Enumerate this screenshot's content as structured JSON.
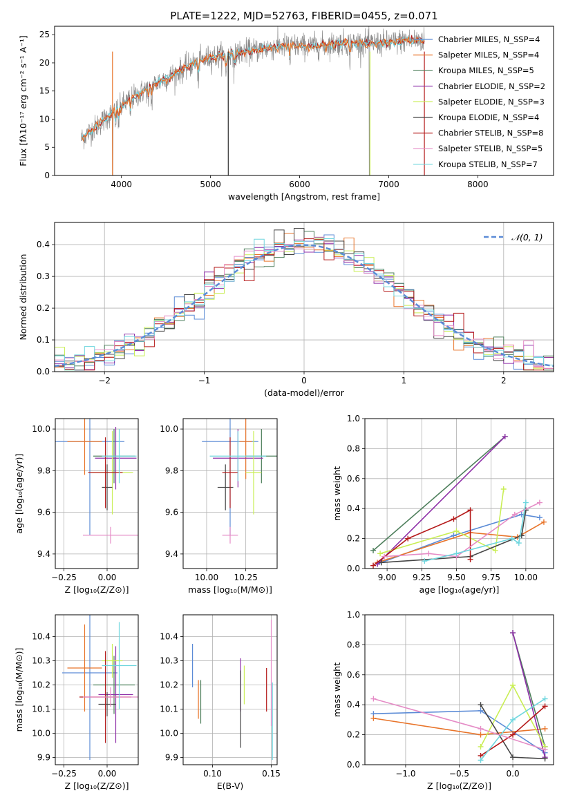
{
  "title": "PLATE=1222, MJD=52763, FIBERID=0455, z=0.071",
  "colors": {
    "c0": "#5b8bd6",
    "c1": "#e8742a",
    "c2": "#4e7f5c",
    "c3": "#8e2fa8",
    "c4": "#c9ee55",
    "c5": "#454545",
    "c6": "#b51a1a",
    "c7": "#e58cc6",
    "c8": "#6fd6de",
    "data_gray": "#8c8c8c"
  },
  "chart_data": [
    {
      "id": "spectrum",
      "type": "line",
      "xlabel": "wavelength [Angstrom, rest frame]",
      "ylabel": "Flux [fλ10⁻¹⁷ erg cm⁻² s⁻¹ A⁻¹]",
      "xlim": [
        3250,
        8850
      ],
      "ylim": [
        0,
        26.5
      ],
      "xticks": [
        "4000",
        "5000",
        "6000",
        "7000",
        "8000"
      ],
      "yticks": [
        "0",
        "5",
        "10",
        "15",
        "20",
        "25"
      ],
      "grid": false,
      "legend_position": "lower-right",
      "legend": [
        "Chabrier MILES, N_SSP=4",
        "Salpeter MILES, N_SSP=4",
        "Kroupa MILES, N_SSP=5",
        "Chabrier ELODIE, N_SSP=2",
        "Salpeter ELODIE, N_SSP=3",
        "Kroupa ELODIE, N_SSP=4",
        "Chabrier STELIB, N_SSP=8",
        "Salpeter STELIB, N_SSP=5",
        "Kroupa STELIB, N_SSP=7"
      ],
      "continuum": {
        "x": [
          3550,
          3700,
          3850,
          3950,
          4050,
          4200,
          4400,
          4600,
          4800,
          5000,
          5200,
          5400,
          5600,
          5800,
          6000,
          6200,
          6500,
          6800,
          7000,
          7200,
          7400
        ],
        "y": [
          6.5,
          8.5,
          10.5,
          11.5,
          13.0,
          14.5,
          16.5,
          18.0,
          19.8,
          21.0,
          21.5,
          22.0,
          22.5,
          23.0,
          23.0,
          23.0,
          23.5,
          23.5,
          23.5,
          24.0,
          24.0
        ]
      }
    },
    {
      "id": "residuals",
      "type": "histogram",
      "xlabel": "(data-model)/error",
      "ylabel": "Normed distribution",
      "xlim": [
        -2.5,
        2.5
      ],
      "ylim": [
        0,
        0.47
      ],
      "xticks": [
        "−2",
        "−1",
        "0",
        "1",
        "2"
      ],
      "yticks": [
        "0.0",
        "0.1",
        "0.2",
        "0.3",
        "0.4"
      ],
      "grid": true,
      "legend": [
        "𝒩(0, 1)"
      ],
      "legend_position": "top-right",
      "reference_curve": "normal, mean 0, std 1"
    },
    {
      "id": "age_vs_z",
      "type": "errorbar",
      "xlabel": "Z [log₁₀(Z/Z⊙)]",
      "ylabel": "age  [log₁₀(age/yr)]",
      "xlim": [
        -0.3,
        0.18
      ],
      "ylim": [
        9.33,
        10.05
      ],
      "xticks": [
        "−0.25",
        "0.00"
      ],
      "yticks": [
        "9.4",
        "9.6",
        "9.8",
        "10.0"
      ],
      "grid": true,
      "points": [
        {
          "x": -0.1,
          "y": 9.94,
          "xerr": 0.2,
          "yerr": 0.45
        },
        {
          "x": -0.13,
          "y": 9.94,
          "xerr": 0.1,
          "yerr": 0.16
        },
        {
          "x": 0.04,
          "y": 9.87,
          "xerr": 0.12,
          "yerr": 0.13
        },
        {
          "x": 0.05,
          "y": 9.86,
          "xerr": 0.12,
          "yerr": 0.15
        },
        {
          "x": 0.03,
          "y": 9.79,
          "xerr": 0.12,
          "yerr": 0.2
        },
        {
          "x": 0.0,
          "y": 9.72,
          "xerr": 0.03,
          "yerr": 0.11
        },
        {
          "x": -0.01,
          "y": 9.79,
          "xerr": 0.1,
          "yerr": 0.17
        },
        {
          "x": 0.02,
          "y": 9.49,
          "xerr": 0.16,
          "yerr": 0.04
        },
        {
          "x": 0.07,
          "y": 9.87,
          "xerr": 0.1,
          "yerr": 0.13
        }
      ]
    },
    {
      "id": "age_vs_mass",
      "type": "errorbar",
      "xlabel": "mass [log₁₀(M/M⊙)]",
      "ylabel": "",
      "xlim": [
        9.85,
        10.45
      ],
      "ylim": [
        9.33,
        10.05
      ],
      "xticks": [
        "10.00",
        "10.25"
      ],
      "yticks": [
        "9.4",
        "9.6",
        "9.8",
        "10.0"
      ],
      "grid": true,
      "points": [
        {
          "x": 10.15,
          "y": 9.94,
          "xerr": 0.18,
          "yerr": 0.45
        },
        {
          "x": 10.25,
          "y": 9.94,
          "xerr": 0.04,
          "yerr": 0.18
        },
        {
          "x": 10.35,
          "y": 9.87,
          "xerr": 0.1,
          "yerr": 0.13
        },
        {
          "x": 10.2,
          "y": 9.86,
          "xerr": 0.16,
          "yerr": 0.14
        },
        {
          "x": 10.3,
          "y": 9.79,
          "xerr": 0.05,
          "yerr": 0.2
        },
        {
          "x": 10.12,
          "y": 9.72,
          "xerr": 0.05,
          "yerr": 0.11
        },
        {
          "x": 10.15,
          "y": 9.79,
          "xerr": 0.05,
          "yerr": 0.17
        },
        {
          "x": 10.15,
          "y": 9.49,
          "xerr": 0.05,
          "yerr": 0.04
        },
        {
          "x": 10.2,
          "y": 9.87,
          "xerr": 0.18,
          "yerr": 0.12
        }
      ]
    },
    {
      "id": "weight_vs_age",
      "type": "line",
      "xlabel": "age  [log₁₀(age/yr)]",
      "ylabel": "mass weight",
      "xlim": [
        8.84,
        10.2
      ],
      "ylim": [
        0,
        1.0
      ],
      "xticks": [
        "9.00",
        "9.25",
        "9.50",
        "9.75",
        "10.00"
      ],
      "yticks": [
        "0.0",
        "0.2",
        "0.4",
        "0.6",
        "0.8",
        "1.0"
      ],
      "grid": true,
      "series": [
        {
          "x": [
            8.93,
            9.48,
            9.97,
            10.1
          ],
          "y": [
            0.03,
            0.22,
            0.36,
            0.34
          ]
        },
        {
          "x": [
            8.93,
            9.6,
            9.94,
            10.13
          ],
          "y": [
            0.04,
            0.24,
            0.21,
            0.31
          ]
        },
        {
          "x": [
            8.9,
            9.85
          ],
          "y": [
            0.12,
            0.88
          ]
        },
        {
          "x": [
            8.93,
            9.85
          ],
          "y": [
            0.03,
            0.88
          ]
        },
        {
          "x": [
            8.95,
            9.5,
            9.78,
            9.84
          ],
          "y": [
            0.1,
            0.25,
            0.12,
            0.53
          ]
        },
        {
          "x": [
            8.96,
            9.6,
            9.97,
            10.0
          ],
          "y": [
            0.04,
            0.08,
            0.22,
            0.39
          ]
        },
        {
          "x": [
            8.9,
            9.15,
            9.48,
            9.6,
            9.6
          ],
          "y": [
            0.02,
            0.2,
            0.33,
            0.39,
            0.06
          ]
        },
        {
          "x": [
            8.98,
            9.3,
            9.5,
            9.92,
            10.1
          ],
          "y": [
            0.08,
            0.1,
            0.08,
            0.36,
            0.44
          ]
        },
        {
          "x": [
            9.27,
            9.5,
            9.9,
            9.95,
            10.0
          ],
          "y": [
            0.05,
            0.1,
            0.2,
            0.17,
            0.44
          ]
        }
      ]
    },
    {
      "id": "mass_vs_z",
      "type": "errorbar",
      "xlabel": "Z [log₁₀(Z/Z⊙)]",
      "ylabel": "mass [log₁₀(M/M⊙)]",
      "xlim": [
        -0.3,
        0.18
      ],
      "ylim": [
        9.87,
        10.49
      ],
      "xticks": [
        "−0.25",
        "0.00"
      ],
      "yticks": [
        "9.9",
        "10.0",
        "10.1",
        "10.2",
        "10.3",
        "10.4"
      ],
      "grid": true,
      "points": [
        {
          "x": -0.1,
          "y": 10.25,
          "xerr": 0.16,
          "yerr": 0.36
        },
        {
          "x": -0.13,
          "y": 10.27,
          "xerr": 0.1,
          "yerr": 0.18
        },
        {
          "x": 0.04,
          "y": 10.2,
          "xerr": 0.12,
          "yerr": 0.12
        },
        {
          "x": 0.05,
          "y": 10.16,
          "xerr": 0.1,
          "yerr": 0.2
        },
        {
          "x": 0.03,
          "y": 10.3,
          "xerr": 0.06,
          "yerr": 0.07
        },
        {
          "x": 0.0,
          "y": 10.12,
          "xerr": 0.05,
          "yerr": 0.05
        },
        {
          "x": -0.01,
          "y": 10.15,
          "xerr": 0.15,
          "yerr": 0.19
        },
        {
          "x": 0.02,
          "y": 10.15,
          "xerr": 0.16,
          "yerr": 0.04
        },
        {
          "x": 0.07,
          "y": 10.28,
          "xerr": 0.1,
          "yerr": 0.18
        }
      ]
    },
    {
      "id": "mass_vs_ebv",
      "type": "errorbar",
      "xlabel": "E(B-V)",
      "ylabel": "",
      "xlim": [
        0.075,
        0.155
      ],
      "ylim": [
        9.87,
        10.49
      ],
      "xticks": [
        "0.10",
        "0.15"
      ],
      "yticks": [
        "9.9",
        "10.0",
        "10.1",
        "10.2",
        "10.3",
        "10.4"
      ],
      "grid": true,
      "points": [
        {
          "x": 0.083,
          "y": 10.28,
          "xerr": 0,
          "yerr": 0.09
        },
        {
          "x": 0.088,
          "y": 10.14,
          "xerr": 0,
          "yerr": 0.08
        },
        {
          "x": 0.09,
          "y": 10.13,
          "xerr": 0,
          "yerr": 0.09
        },
        {
          "x": 0.124,
          "y": 10.2,
          "xerr": 0,
          "yerr": 0.11
        },
        {
          "x": 0.127,
          "y": 10.2,
          "xerr": 0,
          "yerr": 0.08
        },
        {
          "x": 0.124,
          "y": 10.1,
          "xerr": 0,
          "yerr": 0.16
        },
        {
          "x": 0.146,
          "y": 10.18,
          "xerr": 0,
          "yerr": 0.09
        },
        {
          "x": 0.15,
          "y": 10.25,
          "xerr": 0,
          "yerr": 0.22
        },
        {
          "x": 0.151,
          "y": 10.05,
          "xerr": 0,
          "yerr": 0.16
        }
      ]
    },
    {
      "id": "weight_vs_z",
      "type": "line",
      "xlabel": "Z [log₁₀(Z/Z⊙)]",
      "ylabel": "mass weight",
      "xlim": [
        -1.38,
        0.38
      ],
      "ylim": [
        0,
        1.0
      ],
      "xticks": [
        "−1.0",
        "−0.5",
        "0.0"
      ],
      "yticks": [
        "0.0",
        "0.2",
        "0.4",
        "0.6",
        "0.8",
        "1.0"
      ],
      "grid": true,
      "series": [
        {
          "x": [
            -1.3,
            -0.3,
            0.3
          ],
          "y": [
            0.34,
            0.36,
            0.08
          ]
        },
        {
          "x": [
            -1.3,
            -0.3,
            0.3
          ],
          "y": [
            0.31,
            0.2,
            0.24
          ]
        },
        {
          "x": [
            0.0,
            0.3
          ],
          "y": [
            0.88,
            0.12
          ]
        },
        {
          "x": [
            0.0,
            0.3
          ],
          "y": [
            0.88,
            0.05
          ]
        },
        {
          "x": [
            -0.3,
            0.0,
            0.3
          ],
          "y": [
            0.12,
            0.53,
            0.12
          ]
        },
        {
          "x": [
            -0.3,
            0.0,
            0.3
          ],
          "y": [
            0.4,
            0.05,
            0.04
          ]
        },
        {
          "x": [
            -0.3,
            0.0,
            0.3
          ],
          "y": [
            0.06,
            0.2,
            0.39
          ]
        },
        {
          "x": [
            -1.3,
            -0.3,
            0.3
          ],
          "y": [
            0.44,
            0.24,
            0.1
          ]
        },
        {
          "x": [
            -0.3,
            0.0,
            0.3
          ],
          "y": [
            0.03,
            0.3,
            0.44
          ]
        }
      ]
    }
  ]
}
